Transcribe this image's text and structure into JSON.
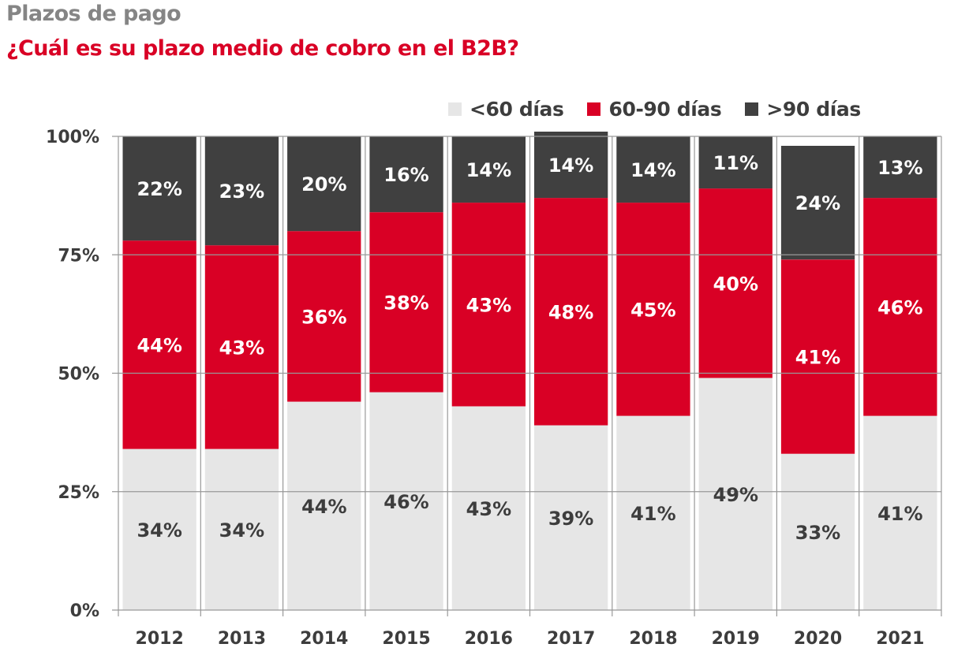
{
  "header": {
    "title": "Plazos de pago",
    "subtitle": "¿Cuál es su plazo medio de cobro en el B2B?"
  },
  "colors": {
    "lt60": "#e6e6e6",
    "d60_90": "#d90025",
    "gt90": "#404040",
    "axis": "#999999",
    "text_dark": "#3d3d3d",
    "text_light": "#ffffff"
  },
  "chart_data": {
    "type": "bar",
    "stacked": true,
    "title": "Plazos de pago",
    "subtitle": "¿Cuál es su plazo medio de cobro en el B2B?",
    "xlabel": "",
    "ylabel": "",
    "ylim": [
      0,
      100
    ],
    "yticks": [
      0,
      25,
      50,
      75,
      100
    ],
    "ytick_labels": [
      "0%",
      "25%",
      "50%",
      "75%",
      "100%"
    ],
    "grid": true,
    "legend_position": "top-right",
    "categories": [
      "2012",
      "2013",
      "2014",
      "2015",
      "2016",
      "2017",
      "2018",
      "2019",
      "2020",
      "2021"
    ],
    "series": [
      {
        "name": "<60 días",
        "color": "#e6e6e6",
        "label_color": "#3d3d3d",
        "values": [
          34,
          34,
          44,
          46,
          43,
          39,
          41,
          49,
          33,
          41
        ],
        "labels": [
          "34%",
          "34%",
          "44%",
          "46%",
          "43%",
          "39%",
          "41%",
          "49%",
          "33%",
          "41%"
        ]
      },
      {
        "name": "60-90 días",
        "color": "#d90025",
        "label_color": "#ffffff",
        "values": [
          44,
          43,
          36,
          38,
          43,
          48,
          45,
          40,
          41,
          46
        ],
        "labels": [
          "44%",
          "43%",
          "36%",
          "38%",
          "43%",
          "48%",
          "45%",
          "40%",
          "41%",
          "46%"
        ]
      },
      {
        "name": ">90 días",
        "color": "#404040",
        "label_color": "#ffffff",
        "values": [
          22,
          23,
          20,
          16,
          14,
          14,
          14,
          11,
          24,
          13
        ],
        "labels": [
          "22%",
          "23%",
          "20%",
          "16%",
          "14%",
          "14%",
          "14%",
          "11%",
          "24%",
          "13%"
        ]
      }
    ]
  }
}
